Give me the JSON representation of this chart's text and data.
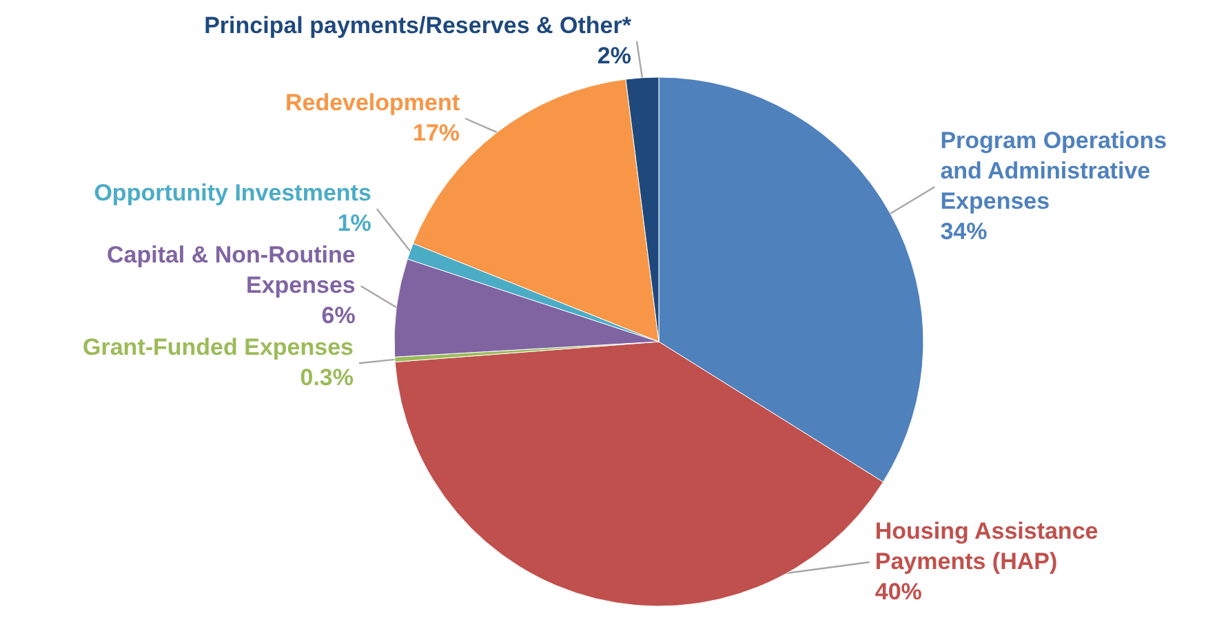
{
  "chart_data": {
    "type": "pie",
    "categories": [
      "Program Operations and Administrative Expenses",
      "Housing Assistance Payments (HAP)",
      "Grant-Funded Expenses",
      "Capital & Non-Routine Expenses",
      "Opportunity Investments",
      "Redevelopment",
      "Principal payments/Reserves & Other*"
    ],
    "values": [
      34,
      40,
      0.3,
      6,
      1,
      17,
      2
    ],
    "value_labels": [
      "34%",
      "40%",
      "0.3%",
      "6%",
      "1%",
      "17%",
      "2%"
    ],
    "colors": [
      "#4f81bd",
      "#c0504d",
      "#9bbb59",
      "#8064a2",
      "#4bacc6",
      "#f79646",
      "#1f497d"
    ]
  }
}
